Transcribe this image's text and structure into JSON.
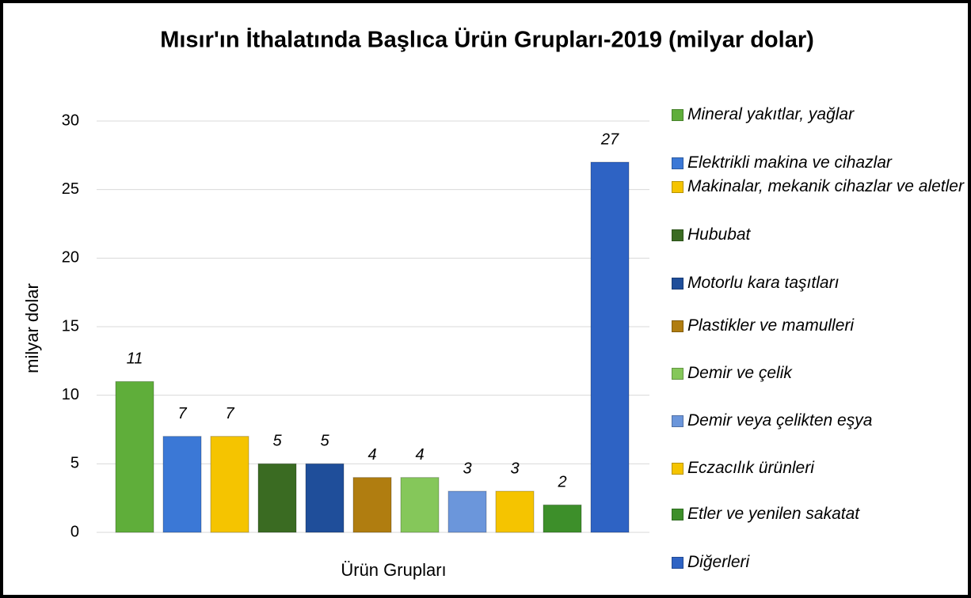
{
  "chart_data": {
    "type": "bar",
    "title": "Mısır'ın İthalatında Başlıca Ürün Grupları-2019 (milyar dolar)",
    "x_label": "Ürün Grupları",
    "y_label": "milyar dolar",
    "categories": [
      "Mineral yakıtlar, yağlar",
      "Elektrikli makina ve cihazlar",
      "Makinalar, mekanik cihazlar ve aletler",
      "Hububat",
      "Motorlu kara taşıtları",
      "Plastikler ve mamulleri",
      "Demir ve çelik",
      "Demir veya çelikten eşya",
      "Eczacılık ürünleri",
      "Etler ve yenilen sakatat",
      "Diğerleri"
    ],
    "values": [
      11,
      7,
      7,
      5,
      5,
      4,
      4,
      3,
      3,
      2,
      27
    ],
    "colors": [
      "#5fae3a",
      "#3b78d6",
      "#f5c400",
      "#3a6b22",
      "#1f4e9a",
      "#b07d10",
      "#85c75a",
      "#6b96db",
      "#f5c400",
      "#3d8f2a",
      "#2e63c4"
    ],
    "ylim": [
      0,
      30
    ],
    "yticks": [
      0,
      5,
      10,
      15,
      20,
      25,
      30
    ],
    "grid": true,
    "legend": "right"
  }
}
